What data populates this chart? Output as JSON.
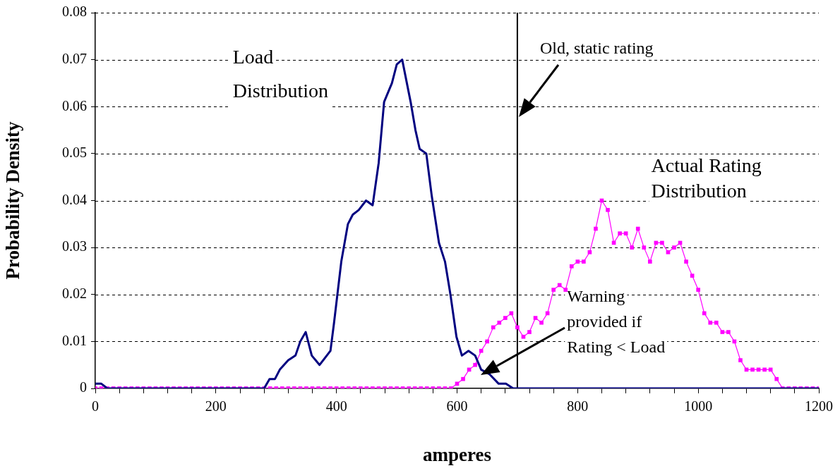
{
  "chart_data": {
    "type": "line",
    "xlabel": "amperes",
    "ylabel": "Probability Density",
    "xlim": [
      0,
      1200
    ],
    "ylim": [
      0,
      0.08
    ],
    "xticks": [
      0,
      {
        "value": 40,
        "label": null
      },
      {
        "value": 80,
        "label": null
      },
      {
        "value": 120,
        "label": null
      },
      {
        "value": 160,
        "label": null
      },
      200,
      {
        "value": 240,
        "label": null
      },
      {
        "value": 280,
        "label": null
      },
      {
        "value": 320,
        "label": null
      },
      {
        "value": 360,
        "label": null
      },
      400,
      {
        "value": 440,
        "label": null
      },
      {
        "value": 480,
        "label": null
      },
      {
        "value": 520,
        "label": null
      },
      {
        "value": 560,
        "label": null
      },
      600,
      {
        "value": 640,
        "label": null
      },
      {
        "value": 680,
        "label": null
      },
      {
        "value": 720,
        "label": null
      },
      {
        "value": 760,
        "label": null
      },
      800,
      {
        "value": 840,
        "label": null
      },
      {
        "value": 880,
        "label": null
      },
      {
        "value": 920,
        "label": null
      },
      {
        "value": 960,
        "label": null
      },
      1000,
      {
        "value": 1040,
        "label": null
      },
      {
        "value": 1080,
        "label": null
      },
      {
        "value": 1120,
        "label": null
      },
      {
        "value": 1160,
        "label": null
      },
      1200
    ],
    "yticks": [
      0,
      0.01,
      0.02,
      0.03,
      0.04,
      0.05,
      0.06,
      0.07,
      0.08
    ],
    "grid": "y",
    "legend": false,
    "series": [
      {
        "name": "Load Distribution",
        "color": "#000080",
        "marker": "none",
        "x": [
          0,
          10,
          20,
          280,
          289,
          298,
          306,
          320,
          332,
          340,
          349,
          359,
          372,
          390,
          396,
          408,
          419,
          427,
          437,
          449,
          460,
          470,
          479,
          492,
          500,
          509,
          523,
          531,
          538,
          549,
          558,
          570,
          580,
          589,
          599,
          608,
          619,
          630,
          640,
          654,
          669,
          681,
          693,
          1200
        ],
        "values": [
          0.001,
          0.001,
          0,
          0,
          0.002,
          0.002,
          0.004,
          0.006,
          0.007,
          0.01,
          0.012,
          0.007,
          0.005,
          0.008,
          0.014,
          0.027,
          0.035,
          0.037,
          0.038,
          0.04,
          0.039,
          0.048,
          0.061,
          0.065,
          0.069,
          0.07,
          0.061,
          0.055,
          0.051,
          0.05,
          0.041,
          0.031,
          0.027,
          0.02,
          0.011,
          0.007,
          0.008,
          0.007,
          0.004,
          0.003,
          0.001,
          0.001,
          0,
          0
        ]
      },
      {
        "name": "Actual Rating Distribution",
        "color": "#ff00ff",
        "marker": "square",
        "x": [
          0,
          10,
          20,
          30,
          40,
          50,
          60,
          70,
          80,
          90,
          100,
          110,
          120,
          130,
          140,
          150,
          160,
          170,
          180,
          190,
          200,
          210,
          220,
          230,
          240,
          250,
          260,
          270,
          280,
          290,
          300,
          310,
          320,
          330,
          340,
          350,
          360,
          370,
          380,
          390,
          400,
          410,
          420,
          430,
          440,
          450,
          460,
          470,
          480,
          490,
          500,
          510,
          520,
          530,
          540,
          550,
          560,
          570,
          580,
          590,
          600,
          610,
          620,
          630,
          640,
          650,
          660,
          670,
          680,
          690,
          700,
          710,
          720,
          730,
          740,
          750,
          760,
          770,
          780,
          790,
          800,
          810,
          820,
          830,
          840,
          850,
          860,
          870,
          880,
          890,
          900,
          910,
          920,
          930,
          940,
          950,
          960,
          970,
          980,
          990,
          1000,
          1010,
          1020,
          1030,
          1040,
          1050,
          1060,
          1070,
          1080,
          1090,
          1100,
          1110,
          1120,
          1130,
          1140,
          1150,
          1160,
          1170,
          1180,
          1190,
          1200
        ],
        "values": [
          0,
          0,
          0,
          0,
          0,
          0,
          0,
          0,
          0,
          0,
          0,
          0,
          0,
          0,
          0,
          0,
          0,
          0,
          0,
          0,
          0,
          0,
          0,
          0,
          0,
          0,
          0,
          0,
          0,
          0,
          0,
          0,
          0,
          0,
          0,
          0,
          0,
          0,
          0,
          0,
          0,
          0,
          0,
          0,
          0,
          0,
          0,
          0,
          0,
          0,
          0,
          0,
          0,
          0,
          0,
          0,
          0,
          0,
          0,
          0,
          0.001,
          0.002,
          0.004,
          0.005,
          0.008,
          0.01,
          0.013,
          0.014,
          0.015,
          0.016,
          0.013,
          0.011,
          0.012,
          0.015,
          0.014,
          0.016,
          0.021,
          0.022,
          0.021,
          0.026,
          0.027,
          0.027,
          0.029,
          0.034,
          0.04,
          0.038,
          0.031,
          0.033,
          0.033,
          0.03,
          0.034,
          0.03,
          0.027,
          0.031,
          0.031,
          0.029,
          0.03,
          0.031,
          0.027,
          0.024,
          0.021,
          0.016,
          0.014,
          0.014,
          0.012,
          0.012,
          0.01,
          0.006,
          0.004,
          0.004,
          0.004,
          0.004,
          0.004,
          0.002,
          0,
          0,
          0,
          0,
          0,
          0,
          0
        ]
      }
    ],
    "ref_lines": [
      {
        "axis": "x",
        "value": 700,
        "label": "Old, static rating",
        "color": "#000000",
        "line_style": "solid"
      }
    ],
    "annotations": [
      "Warning provided if Rating < Load"
    ]
  }
}
